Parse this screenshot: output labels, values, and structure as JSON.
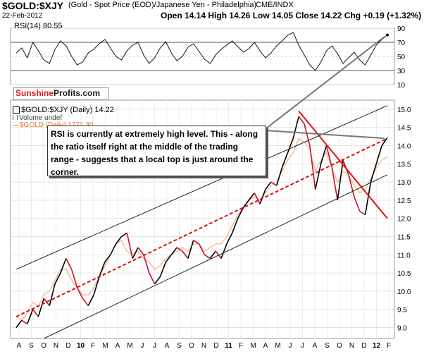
{
  "header": {
    "title": "$GOLD:$XJY",
    "subtitle": "(Gold - Spot Price (EOD)/Japanese Yen - Philadelphia)",
    "exchange": "CME/INDX",
    "date": "22-Feb-2012",
    "ohlc": "Open 14.14  High 14.26  Low 14.05  Close 14.22  Chg +0.19 (+1.32%)",
    "ohlc_arrow": "▲"
  },
  "rsi_panel": {
    "label": "RSI(14) 80.55",
    "ticks": [
      "90",
      "70",
      "50",
      "30",
      "10"
    ]
  },
  "logo": {
    "part1": "Sunshine",
    "part2": "Profits.com"
  },
  "legend": {
    "main": "$GOLD:$XJY (Daily) 14.22",
    "volume": "Volume undef",
    "overlay": "$GOLD (Daily) 1771.30"
  },
  "annotation": "RSI is currently at extremely high level. This - along the ratio itself right at the middle of the trading range - suggests that a local top is just around the corner.",
  "colors": {
    "price_up": "#000000",
    "price_down": "#c8102e",
    "gold_overlay": "#f4b183",
    "trend_line": "#e01010",
    "channel": "#222222"
  },
  "chart_data": {
    "type": "line",
    "y_ticks": [
      "15.0",
      "14.5",
      "14.0",
      "13.5",
      "13.0",
      "12.5",
      "12.0",
      "11.5",
      "11.0",
      "10.5",
      "10.0",
      "9.5",
      "9.0"
    ],
    "y_values": [
      15.0,
      14.5,
      14.0,
      13.5,
      13.0,
      12.5,
      12.0,
      11.5,
      11.0,
      10.5,
      10.0,
      9.5,
      9.0
    ],
    "ylim": [
      8.7,
      15.25
    ],
    "x_tick_labels": [
      "A",
      "S",
      "O",
      "N",
      "D",
      "10",
      "F",
      "M",
      "A",
      "M",
      "J",
      "J",
      "A",
      "S",
      "O",
      "N",
      "D",
      "11",
      "F",
      "M",
      "A",
      "M",
      "J",
      "J",
      "A",
      "S",
      "O",
      "N",
      "D",
      "12",
      "F"
    ],
    "x_tick_bold": [
      false,
      false,
      false,
      false,
      false,
      true,
      false,
      false,
      false,
      false,
      false,
      false,
      false,
      false,
      false,
      false,
      false,
      true,
      false,
      false,
      false,
      false,
      false,
      false,
      false,
      false,
      false,
      false,
      false,
      true,
      false
    ],
    "series": [
      {
        "name": "$GOLD:$XJY (Daily)",
        "values": [
          9.0,
          9.2,
          9.1,
          9.5,
          9.3,
          9.8,
          9.6,
          10.2,
          10.5,
          10.9,
          10.6,
          10.1,
          9.8,
          9.6,
          9.9,
          10.4,
          10.8,
          11.0,
          11.3,
          11.5,
          11.6,
          10.9,
          11.2,
          11.0,
          10.5,
          10.2,
          10.4,
          10.8,
          11.0,
          11.2,
          11.1,
          10.9,
          11.4,
          11.3,
          11.0,
          10.9,
          11.1,
          10.9,
          11.3,
          11.6,
          12.0,
          12.3,
          12.5,
          12.7,
          12.4,
          12.8,
          13.0,
          12.9,
          13.4,
          13.8,
          14.2,
          14.8,
          14.6,
          14.0,
          12.8,
          13.5,
          14.0,
          13.4,
          12.5,
          13.6,
          13.2,
          12.6,
          12.2,
          12.1,
          13.0,
          13.5,
          14.0,
          14.22
        ]
      },
      {
        "name": "$GOLD (Daily)",
        "values": [
          9.3,
          9.2,
          9.4,
          9.7,
          9.6,
          9.9,
          10.0,
          10.3,
          10.6,
          10.6,
          10.3,
          10.1,
          9.9,
          9.9,
          10.1,
          10.4,
          10.7,
          11.0,
          11.3,
          11.4,
          11.1,
          11.0,
          11.1,
          10.9,
          10.8,
          10.6,
          10.7,
          10.9,
          11.0,
          11.1,
          11.2,
          11.1,
          11.3,
          11.3,
          11.1,
          11.2,
          11.3,
          11.3,
          11.5,
          11.8,
          12.1,
          12.3,
          12.5,
          12.6,
          12.5,
          12.7,
          12.9,
          13.0,
          13.3,
          13.6,
          13.8,
          14.2,
          14.1,
          13.9,
          13.3,
          13.6,
          13.8,
          13.4,
          13.0,
          13.3,
          13.2,
          12.9,
          12.7,
          12.8,
          13.1,
          13.4,
          13.6,
          13.7
        ]
      }
    ],
    "rsi": {
      "name": "RSI(14)",
      "ylim": [
        10,
        90
      ],
      "ticks": [
        90,
        70,
        50,
        30,
        10
      ],
      "values": [
        55,
        62,
        48,
        70,
        58,
        45,
        40,
        60,
        72,
        65,
        50,
        38,
        42,
        55,
        60,
        68,
        74,
        62,
        50,
        45,
        58,
        66,
        70,
        52,
        40,
        48,
        62,
        71,
        55,
        44,
        50,
        63,
        68,
        57,
        46,
        40,
        52,
        60,
        66,
        72,
        64,
        56,
        61,
        70,
        58,
        48,
        55,
        65,
        72,
        80,
        84,
        66,
        52,
        38,
        30,
        42,
        58,
        65,
        54,
        40,
        48,
        56,
        45,
        38,
        52,
        66,
        74,
        80.55
      ]
    },
    "trend_lines": [
      {
        "name": "red dashed midline",
        "from": [
          0,
          9.3
        ],
        "to": [
          67,
          14.2
        ]
      },
      {
        "name": "red downtrend",
        "from": [
          51,
          14.95
        ],
        "to": [
          67,
          12.0
        ]
      },
      {
        "name": "upper channel",
        "from": [
          0,
          10.6
        ],
        "to": [
          67,
          15.1
        ]
      },
      {
        "name": "lower channel",
        "from": [
          5,
          8.7
        ],
        "to": [
          67,
          13.2
        ]
      }
    ]
  }
}
